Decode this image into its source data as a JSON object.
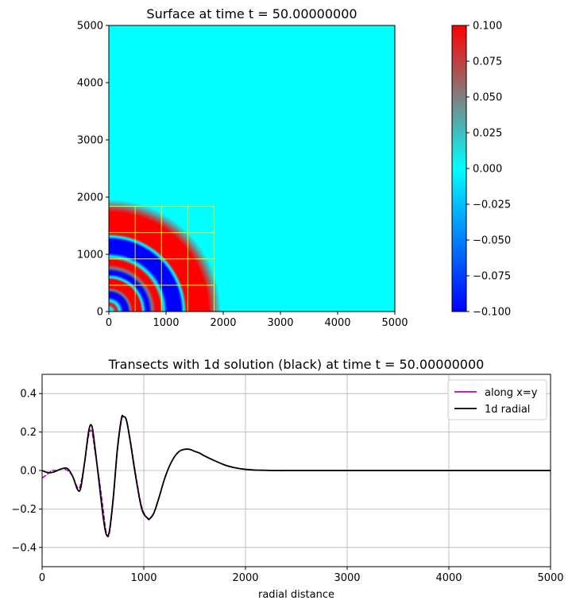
{
  "chart_data": [
    {
      "type": "heatmap",
      "title": "Surface at time t =    50.00000000",
      "xlim": [
        0,
        5000
      ],
      "ylim": [
        0,
        5000
      ],
      "xticks": [
        "0",
        "1000",
        "2000",
        "3000",
        "4000",
        "5000"
      ],
      "yticks": [
        "0",
        "1000",
        "2000",
        "3000",
        "4000",
        "5000"
      ],
      "grid": false,
      "colorbar": {
        "range": [
          -0.1,
          0.1
        ],
        "colormap": [
          "#0000ff",
          "#00ffff",
          "#ff0000"
        ],
        "ticks": [
          "0.100",
          "0.075",
          "0.050",
          "0.025",
          "0.000",
          "−0.025",
          "−0.050",
          "−0.075",
          "−0.100"
        ]
      },
      "background_value": 0.0,
      "radial_profile": [
        {
          "r": 0,
          "v": -0.03
        },
        {
          "r": 60,
          "v": 0.0
        },
        {
          "r": 130,
          "v": 0.1
        },
        {
          "r": 190,
          "v": 0.0
        },
        {
          "r": 250,
          "v": -0.1
        },
        {
          "r": 330,
          "v": -0.1
        },
        {
          "r": 380,
          "v": 0.05
        },
        {
          "r": 420,
          "v": 0.1
        },
        {
          "r": 560,
          "v": 0.1
        },
        {
          "r": 600,
          "v": 0.0
        },
        {
          "r": 650,
          "v": -0.1
        },
        {
          "r": 700,
          "v": -0.1
        },
        {
          "r": 760,
          "v": 0.05
        },
        {
          "r": 820,
          "v": 0.1
        },
        {
          "r": 900,
          "v": 0.1
        },
        {
          "r": 960,
          "v": 0.0
        },
        {
          "r": 1020,
          "v": -0.1
        },
        {
          "r": 1260,
          "v": -0.1
        },
        {
          "r": 1310,
          "v": 0.0
        },
        {
          "r": 1360,
          "v": 0.1
        },
        {
          "r": 1740,
          "v": 0.1
        },
        {
          "r": 1960,
          "v": 0.0
        },
        {
          "r": 5000,
          "v": 0.0
        }
      ],
      "amr_grid": {
        "color": "#ffff00",
        "x": [
          0,
          460,
          920,
          1380,
          1840
        ],
        "y": [
          0,
          460,
          920,
          1380,
          1840
        ]
      }
    },
    {
      "type": "line",
      "title": "Transects with 1d solution (black) at time t =    50.00000000",
      "xlabel": "radial distance",
      "ylabel": "",
      "xlim": [
        0,
        5000
      ],
      "ylim": [
        -0.5,
        0.5
      ],
      "xticks": [
        "0",
        "1000",
        "2000",
        "3000",
        "4000",
        "5000"
      ],
      "yticks": [
        "0.4",
        "0.2",
        "0.0",
        "−0.2",
        "−0.4"
      ],
      "grid": true,
      "legend": "top-right",
      "series": [
        {
          "name": "along x=y",
          "color": "#bf00bf",
          "style": "dashed",
          "x": [
            0,
            50,
            100,
            150,
            200,
            250,
            300,
            350,
            380,
            420,
            460,
            490,
            520,
            560,
            600,
            630,
            660,
            700,
            740,
            780,
            800,
            830,
            870,
            920,
            980,
            1040,
            1060,
            1100,
            1150,
            1200,
            1250,
            1300,
            1350,
            1400,
            1450,
            1500,
            1550,
            1600,
            1700,
            1800,
            1900,
            2000,
            2100,
            2200,
            2300,
            2500,
            3000,
            4000,
            5000
          ],
          "y": [
            -0.04,
            -0.02,
            0.0,
            0.0,
            0.01,
            0.0,
            -0.03,
            -0.09,
            -0.07,
            0.05,
            0.19,
            0.2,
            0.1,
            -0.04,
            -0.2,
            -0.32,
            -0.33,
            -0.15,
            0.1,
            0.26,
            0.28,
            0.26,
            0.15,
            -0.02,
            -0.19,
            -0.25,
            -0.25,
            -0.22,
            -0.14,
            -0.05,
            0.02,
            0.07,
            0.1,
            0.11,
            0.11,
            0.1,
            0.09,
            0.075,
            0.05,
            0.028,
            0.014,
            0.006,
            0.002,
            0.001,
            0.0,
            0.0,
            0.0,
            0.0,
            0.0
          ]
        },
        {
          "name": "1d radial",
          "color": "#000000",
          "style": "solid",
          "x": [
            0,
            50,
            100,
            150,
            200,
            250,
            300,
            350,
            380,
            420,
            460,
            490,
            520,
            560,
            600,
            630,
            660,
            700,
            740,
            780,
            800,
            830,
            870,
            920,
            980,
            1040,
            1060,
            1100,
            1150,
            1200,
            1250,
            1300,
            1350,
            1400,
            1450,
            1500,
            1550,
            1600,
            1700,
            1800,
            1900,
            2000,
            2100,
            2200,
            2300,
            2500,
            3000,
            4000,
            5000
          ],
          "y": [
            0.0,
            -0.01,
            -0.01,
            0.0,
            0.01,
            0.01,
            -0.03,
            -0.1,
            -0.09,
            0.05,
            0.21,
            0.23,
            0.12,
            -0.06,
            -0.24,
            -0.33,
            -0.32,
            -0.14,
            0.11,
            0.27,
            0.28,
            0.26,
            0.14,
            -0.03,
            -0.2,
            -0.25,
            -0.25,
            -0.22,
            -0.14,
            -0.05,
            0.02,
            0.07,
            0.1,
            0.11,
            0.11,
            0.1,
            0.09,
            0.075,
            0.05,
            0.028,
            0.014,
            0.006,
            0.002,
            0.001,
            0.0,
            0.0,
            0.0,
            0.0,
            0.0
          ]
        }
      ]
    }
  ]
}
